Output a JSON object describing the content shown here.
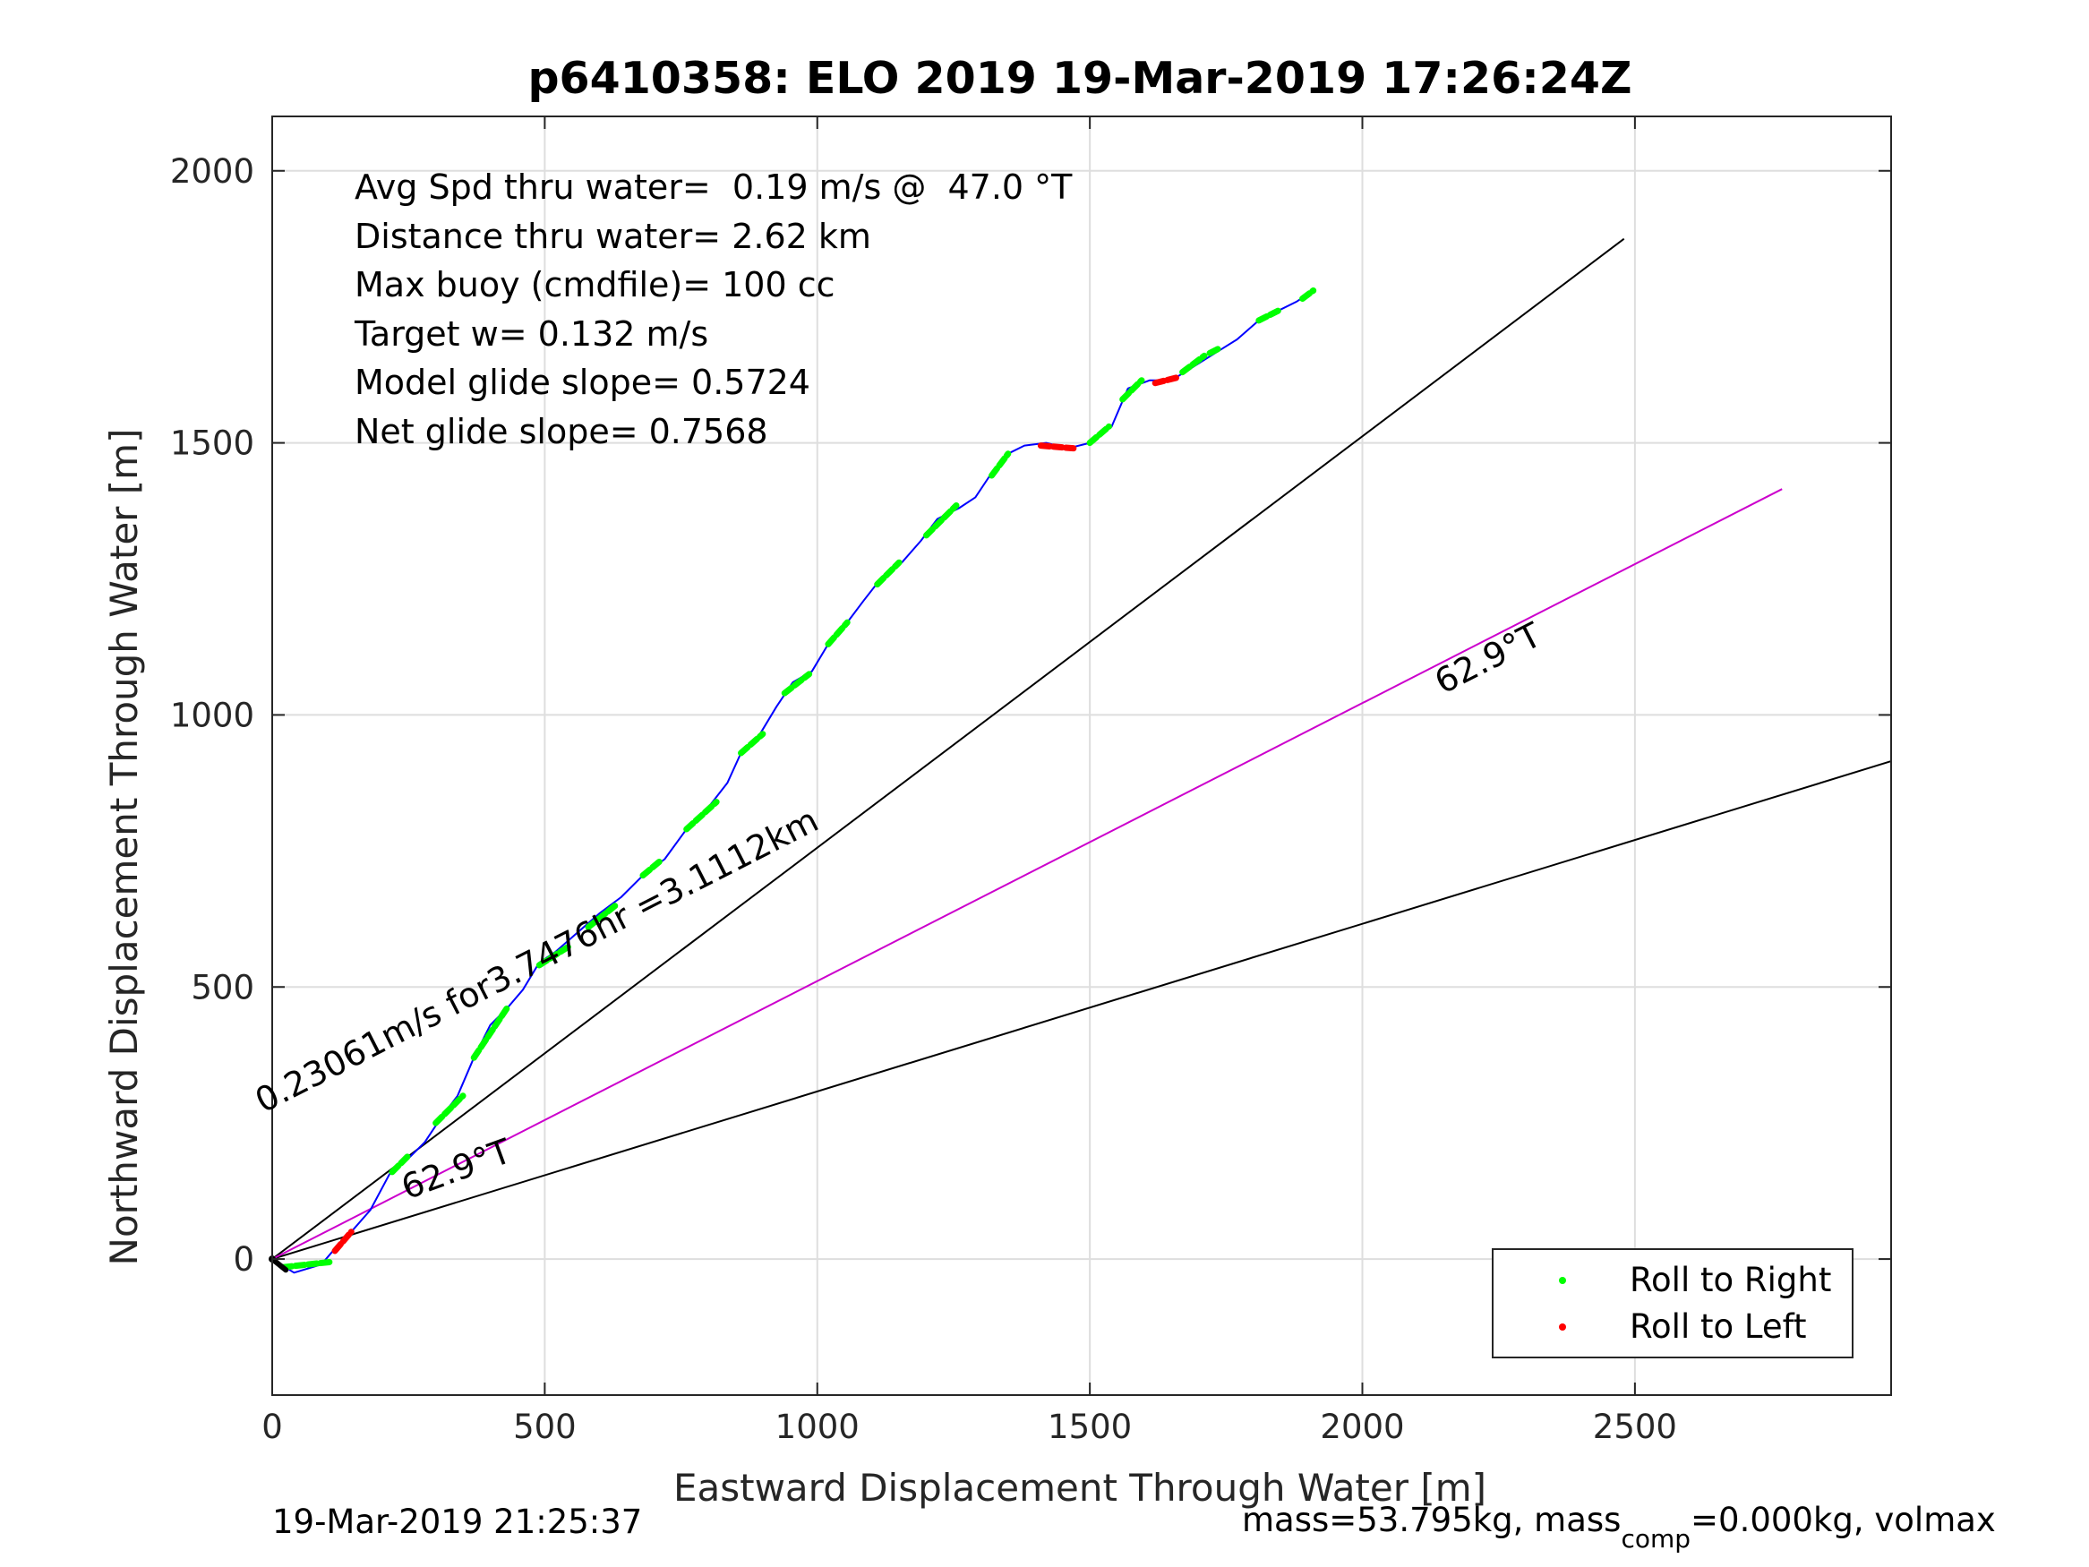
{
  "chart_data": {
    "type": "line",
    "title": "p6410358: ELO 2019 19-Mar-2019 17:26:24Z",
    "xlabel": "Eastward Displacement Through Water [m]",
    "ylabel": "Northward Displacement Through Water [m]",
    "xlim": [
      0,
      2970
    ],
    "ylim": [
      -250,
      2100
    ],
    "xticks": [
      0,
      500,
      1000,
      1500,
      2000,
      2500
    ],
    "yticks": [
      0,
      500,
      1000,
      1500,
      2000
    ],
    "xtick_labels": [
      "0",
      "500",
      "1000",
      "1500",
      "2000",
      "2500"
    ],
    "ytick_labels": [
      "0",
      "500",
      "1000",
      "1500",
      "2000"
    ],
    "grid": true,
    "stats": [
      "Avg Spd thru water=  0.19 m/s @  47.0 °T",
      "Distance thru water=  2.62 km",
      "Max buoy (cmdfile)= 100 cc",
      "Target w= 0.132 m/s",
      "Model glide slope= 0.5724",
      "Net glide slope= 0.7568"
    ],
    "track": {
      "color": "#0000ff",
      "points": [
        [
          0,
          0
        ],
        [
          40,
          -25
        ],
        [
          90,
          -10
        ],
        [
          120,
          25
        ],
        [
          145,
          50
        ],
        [
          180,
          90
        ],
        [
          220,
          165
        ],
        [
          250,
          185
        ],
        [
          280,
          215
        ],
        [
          310,
          260
        ],
        [
          340,
          300
        ],
        [
          370,
          370
        ],
        [
          400,
          430
        ],
        [
          430,
          460
        ],
        [
          460,
          495
        ],
        [
          490,
          545
        ],
        [
          520,
          565
        ],
        [
          560,
          600
        ],
        [
          600,
          635
        ],
        [
          640,
          665
        ],
        [
          680,
          705
        ],
        [
          720,
          735
        ],
        [
          760,
          790
        ],
        [
          800,
          830
        ],
        [
          835,
          875
        ],
        [
          860,
          930
        ],
        [
          895,
          965
        ],
        [
          925,
          1015
        ],
        [
          955,
          1060
        ],
        [
          990,
          1080
        ],
        [
          1020,
          1130
        ],
        [
          1055,
          1170
        ],
        [
          1085,
          1210
        ],
        [
          1120,
          1255
        ],
        [
          1155,
          1280
        ],
        [
          1190,
          1320
        ],
        [
          1220,
          1360
        ],
        [
          1260,
          1380
        ],
        [
          1290,
          1400
        ],
        [
          1320,
          1445
        ],
        [
          1350,
          1480
        ],
        [
          1380,
          1495
        ],
        [
          1420,
          1500
        ],
        [
          1460,
          1490
        ],
        [
          1500,
          1500
        ],
        [
          1540,
          1530
        ],
        [
          1570,
          1600
        ],
        [
          1610,
          1615
        ],
        [
          1650,
          1615
        ],
        [
          1690,
          1640
        ],
        [
          1730,
          1665
        ],
        [
          1770,
          1690
        ],
        [
          1810,
          1725
        ],
        [
          1850,
          1745
        ],
        [
          1880,
          1760
        ],
        [
          1910,
          1780
        ]
      ]
    },
    "roll_right_segments": [
      [
        [
          20,
          -15
        ],
        [
          110,
          -5
        ]
      ],
      [
        [
          220,
          160
        ],
        [
          250,
          190
        ]
      ],
      [
        [
          300,
          250
        ],
        [
          350,
          300
        ]
      ],
      [
        [
          370,
          370
        ],
        [
          430,
          460
        ]
      ],
      [
        [
          490,
          540
        ],
        [
          545,
          575
        ]
      ],
      [
        [
          580,
          610
        ],
        [
          630,
          650
        ]
      ],
      [
        [
          680,
          705
        ],
        [
          710,
          730
        ]
      ],
      [
        [
          760,
          790
        ],
        [
          815,
          840
        ]
      ],
      [
        [
          860,
          930
        ],
        [
          900,
          965
        ]
      ],
      [
        [
          940,
          1040
        ],
        [
          985,
          1075
        ]
      ],
      [
        [
          1020,
          1130
        ],
        [
          1055,
          1170
        ]
      ],
      [
        [
          1110,
          1240
        ],
        [
          1150,
          1280
        ]
      ],
      [
        [
          1200,
          1330
        ],
        [
          1255,
          1385
        ]
      ],
      [
        [
          1320,
          1440
        ],
        [
          1350,
          1480
        ]
      ],
      [
        [
          1500,
          1500
        ],
        [
          1535,
          1530
        ]
      ],
      [
        [
          1560,
          1580
        ],
        [
          1595,
          1615
        ]
      ],
      [
        [
          1670,
          1630
        ],
        [
          1710,
          1660
        ]
      ],
      [
        [
          1720,
          1665
        ],
        [
          1740,
          1675
        ]
      ],
      [
        [
          1810,
          1725
        ],
        [
          1850,
          1745
        ]
      ],
      [
        [
          1890,
          1765
        ],
        [
          1910,
          1780
        ]
      ]
    ],
    "roll_left_segments": [
      [
        [
          115,
          15
        ],
        [
          145,
          50
        ]
      ],
      [
        [
          1410,
          1495
        ],
        [
          1470,
          1490
        ]
      ],
      [
        [
          1620,
          1610
        ],
        [
          1660,
          1620
        ]
      ]
    ],
    "lines": [
      {
        "name": "",
        "color": "#000000",
        "points": [
          [
            0,
            0
          ],
          [
            2480,
            1875
          ]
        ]
      },
      {
        "name": "",
        "color": "#000000",
        "points": [
          [
            0,
            0
          ],
          [
            2970,
            915
          ]
        ]
      },
      {
        "name": "",
        "color": "#cc00cc",
        "points": [
          [
            0,
            0
          ],
          [
            2770,
            1415
          ]
        ]
      }
    ],
    "labels": [
      {
        "text": "0.23061m/s for3.7476hr =3.1112km",
        "x": 495,
        "y": 530,
        "angle": 27.1
      },
      {
        "text": "62.9°T",
        "x": 2240,
        "y": 1085,
        "angle": 27.1
      },
      {
        "text": "62.9°T",
        "x": 345,
        "y": 145,
        "angle": 20.1
      }
    ],
    "legend": {
      "position": "bottom-right",
      "entries": [
        {
          "label": "Roll to Right",
          "color": "#00ff00"
        },
        {
          "label": "Roll to Left",
          "color": "#ff0000"
        }
      ]
    }
  },
  "footer": {
    "timestamp": "19-Mar-2019 21:25:37",
    "mass_pre": "mass=53.795kg, mass",
    "mass_sub": "comp",
    "mass_post": "=0.000kg, volmax"
  }
}
